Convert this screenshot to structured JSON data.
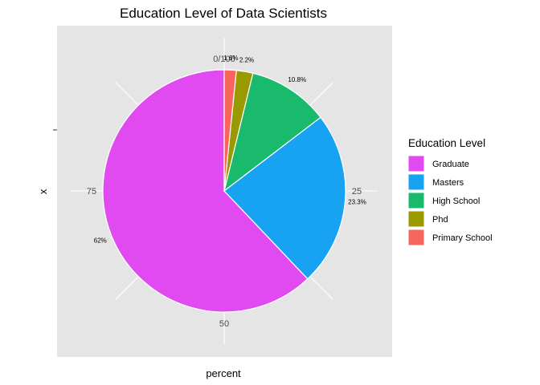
{
  "chart_data": {
    "type": "pie",
    "title": "Education Level of Data Scientists",
    "xlabel": "percent",
    "ylabel": "x",
    "theta_ticks": [
      {
        "value": 0,
        "label": "0/100"
      },
      {
        "value": 25,
        "label": "25"
      },
      {
        "value": 50,
        "label": "50"
      },
      {
        "value": 75,
        "label": "75"
      }
    ],
    "slices": [
      {
        "label": "Graduate",
        "value": 62,
        "display": "62%",
        "color": "#E04AF0"
      },
      {
        "label": "Masters",
        "value": 23.3,
        "display": "23.3%",
        "color": "#17A2F2"
      },
      {
        "label": "High School",
        "value": 10.8,
        "display": "10.8%",
        "color": "#1ABA6C"
      },
      {
        "label": "Phd",
        "value": 2.2,
        "display": "2.2%",
        "color": "#999900"
      },
      {
        "label": "Primary School",
        "value": 1.6,
        "display": "1.6%",
        "color": "#F8645E"
      }
    ],
    "legend": {
      "title": "Education Level",
      "placement": "right",
      "entries": [
        "Graduate",
        "Masters",
        "High School",
        "Phd",
        "Primary School"
      ]
    },
    "grid": true,
    "panel_background": "#E5E5E5",
    "grid_color": "#FFFFFF"
  }
}
